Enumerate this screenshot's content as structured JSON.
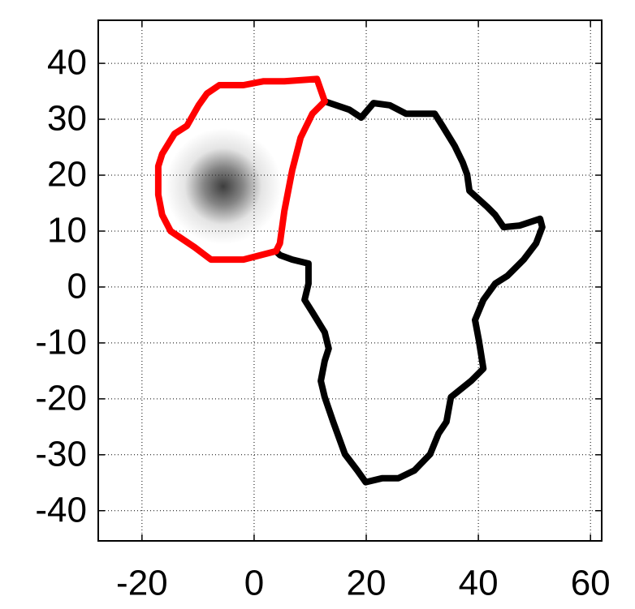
{
  "chart_data": {
    "type": "line",
    "xlim": [
      -27.8,
      62
    ],
    "ylim": [
      -45.4,
      47.7
    ],
    "xticks": [
      -20,
      0,
      20,
      40,
      60
    ],
    "yticks": [
      -40,
      -30,
      -20,
      -10,
      0,
      10,
      20,
      30,
      40
    ],
    "grid": true,
    "density": {
      "x": -5.5,
      "y": 18,
      "sigma": 4,
      "color": "#333333"
    },
    "series": [
      {
        "color": "#000000",
        "x": [
          12.6,
          17.0,
          19.1,
          21.3,
          24.2,
          27.1,
          30.0,
          32.2,
          33.6,
          35.8,
          37.2,
          38.0,
          38.4,
          41.6,
          43.0,
          44.5,
          47.4,
          51.0,
          51.4,
          50.3,
          48.1,
          45.2,
          43.0,
          40.9,
          39.4,
          40.1,
          40.9,
          38.7,
          35.1,
          34.3,
          32.9,
          31.4,
          28.6,
          25.7,
          22.8,
          19.9,
          18.4,
          16.2,
          14.1,
          12.6,
          11.9,
          12.6,
          13.3,
          12.6,
          10.4,
          9.0,
          9.7,
          9.7,
          6.8,
          4.6,
          3.9
        ],
        "y": [
          33.2,
          31.7,
          30.3,
          32.9,
          32.5,
          31.0,
          31.0,
          31.0,
          28.8,
          25.2,
          22.3,
          20.1,
          17.2,
          14.3,
          12.9,
          10.7,
          11.0,
          12.2,
          10.7,
          7.8,
          4.9,
          2.0,
          0.6,
          -2.3,
          -5.9,
          -9.6,
          -14.6,
          -16.8,
          -19.7,
          -24.1,
          -26.2,
          -29.9,
          -32.8,
          -34.2,
          -34.2,
          -34.9,
          -32.8,
          -29.9,
          -24.1,
          -19.7,
          -16.8,
          -13.2,
          -11.0,
          -8.1,
          -4.5,
          -2.3,
          0.6,
          4.2,
          4.9,
          5.7,
          6.4
        ]
      },
      {
        "color": "#ff0000",
        "x": [
          3.9,
          -1.9,
          -7.7,
          -10.6,
          -14.9,
          -16.4,
          -17.1,
          -17.1,
          -16.4,
          -14.2,
          -12.0,
          -9.9,
          -8.4,
          -6.2,
          -1.9,
          1.7,
          5.4,
          11.2,
          12.6,
          10.4,
          8.3,
          6.8,
          5.4,
          4.6,
          3.9
        ],
        "y": [
          6.4,
          4.9,
          4.9,
          7.1,
          10.0,
          12.9,
          16.5,
          21.6,
          23.8,
          27.4,
          28.8,
          32.5,
          34.6,
          36.1,
          36.1,
          36.8,
          36.8,
          37.2,
          33.2,
          31.0,
          26.7,
          20.9,
          13.6,
          7.8,
          6.4
        ]
      }
    ]
  }
}
